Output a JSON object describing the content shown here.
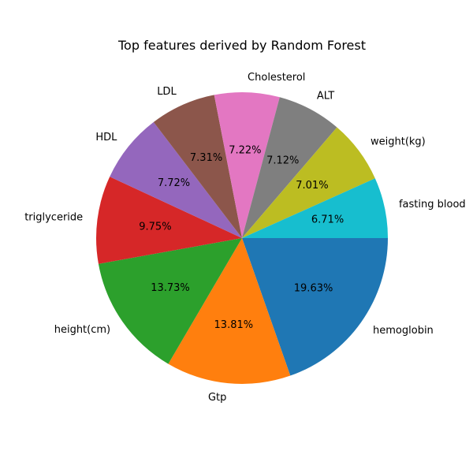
{
  "chart_data": {
    "type": "pie",
    "title": "Top features derived by Random Forest",
    "labels": [
      "hemoglobin",
      "Gtp",
      "height(cm)",
      "triglyceride",
      "HDL",
      "LDL",
      "Cholesterol",
      "ALT",
      "weight(kg)",
      "fasting blood"
    ],
    "values": [
      19.63,
      13.81,
      13.73,
      9.75,
      7.72,
      7.31,
      7.22,
      7.12,
      7.01,
      6.71
    ],
    "pct_labels": [
      "19.63%",
      "13.81%",
      "13.73%",
      "9.75%",
      "7.72%",
      "7.31%",
      "7.22%",
      "7.12%",
      "7.01%",
      "6.71%"
    ],
    "colors": [
      "#1f77b4",
      "#ff7f0e",
      "#2ca02c",
      "#d62728",
      "#9467bd",
      "#8c564b",
      "#e377c2",
      "#7f7f7f",
      "#bcbd22",
      "#17becf"
    ],
    "start_angle_deg": 0,
    "direction": "clockwise-on-screen",
    "legend": "none"
  }
}
